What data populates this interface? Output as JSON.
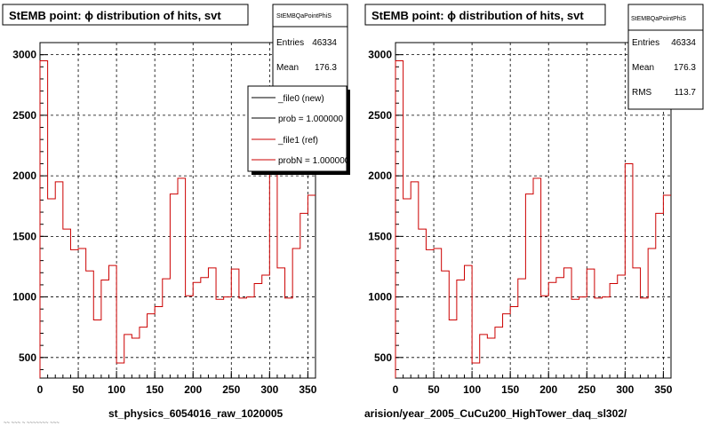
{
  "canvas": {
    "left_caption": "st_physics_6054016_raw_1020005",
    "right_caption": "arision/year_2005_CuCu200_HighTower_daq_sl302/",
    "footer_text": "~~ ~~~ ~ ~~~~~~~ ~~~"
  },
  "colors": {
    "ref_hist": "#cc0000",
    "new_hist": "#000000",
    "grid": "#000000"
  },
  "chart_data": [
    {
      "type": "histogram",
      "panel": "left",
      "title": "StEMB point:  ϕ distribution of hits, svt",
      "stats": {
        "name": "StEMBQaPointPhiS",
        "entries_label": "Entries",
        "entries": "46334",
        "mean_label": "Mean",
        "mean": "176.3"
      },
      "legend": {
        "placement": "top-right",
        "entries": [
          {
            "label": "_file0 (new)",
            "color": "#000000"
          },
          {
            "label": "prob = 1.000000",
            "color": "#000000"
          },
          {
            "label": "_file1 (ref)",
            "color": "#cc0000"
          },
          {
            "label": "probN = 1.000000",
            "color": "#cc0000"
          }
        ]
      },
      "xlim": [
        0,
        360
      ],
      "ylim": [
        330,
        3100
      ],
      "x_ticks": [
        "0",
        "50",
        "100",
        "150",
        "200",
        "250",
        "300",
        "350"
      ],
      "y_ticks": [
        "500",
        "1000",
        "1500",
        "2000",
        "2500",
        "3000"
      ],
      "grid": true,
      "bin_width": 10,
      "bin_edges_start": 0,
      "values": [
        2950,
        1810,
        1950,
        1560,
        1390,
        1400,
        1215,
        810,
        1140,
        1260,
        455,
        690,
        660,
        750,
        860,
        920,
        1150,
        1850,
        1980,
        1010,
        1120,
        1160,
        1240,
        980,
        1000,
        1230,
        990,
        1000,
        1110,
        1180,
        2100,
        1240,
        990,
        1400,
        1690,
        1840
      ]
    },
    {
      "type": "histogram",
      "panel": "right",
      "title": "StEMB point:  ϕ distribution of hits, svt",
      "stats": {
        "name": "StEMBQaPointPhiS",
        "entries_label": "Entries",
        "entries": "46334",
        "mean_label": "Mean",
        "mean": "176.3",
        "rms_label": "RMS",
        "rms": "113.7"
      },
      "xlim": [
        0,
        360
      ],
      "ylim": [
        330,
        3100
      ],
      "x_ticks": [
        "0",
        "50",
        "100",
        "150",
        "200",
        "250",
        "300",
        "350"
      ],
      "y_ticks": [
        "500",
        "1000",
        "1500",
        "2000",
        "2500",
        "3000"
      ],
      "grid": true,
      "bin_width": 10,
      "bin_edges_start": 0,
      "values": [
        2950,
        1810,
        1950,
        1560,
        1390,
        1400,
        1215,
        810,
        1140,
        1260,
        455,
        690,
        660,
        750,
        860,
        920,
        1150,
        1850,
        1980,
        1010,
        1120,
        1160,
        1240,
        980,
        1000,
        1230,
        990,
        1000,
        1110,
        1180,
        2100,
        1240,
        990,
        1400,
        1690,
        1840
      ]
    }
  ]
}
